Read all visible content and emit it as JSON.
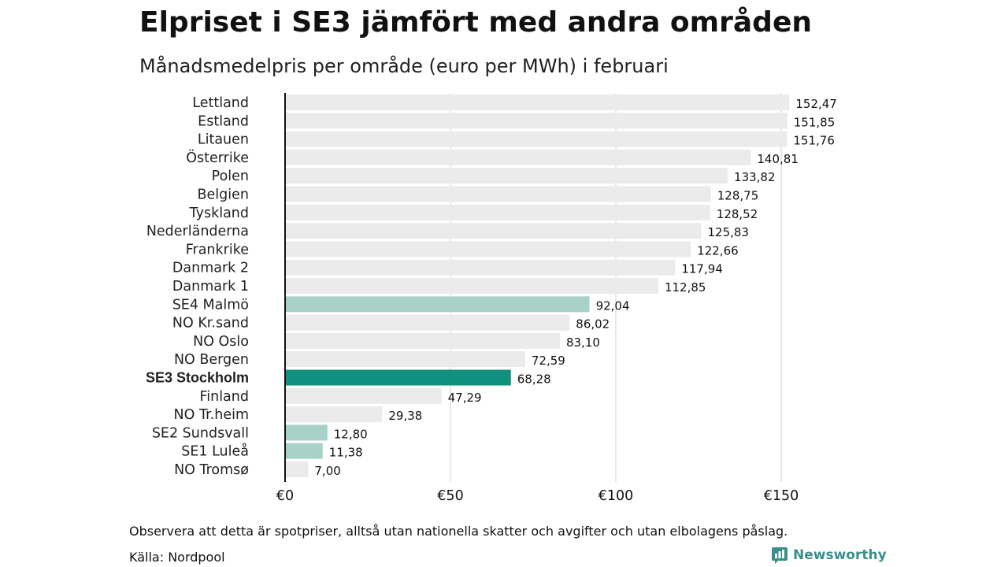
{
  "header": {
    "title": "Elpriset i SE3 jämfört med andra områden",
    "subtitle": "Månadsmedelpris per område (euro per MWh) i februari"
  },
  "footer": {
    "note": "Observera att detta är spotpriser, alltså utan nationella skatter och avgifter och utan elbolagens påslag.",
    "source": "Källa: Nordpool",
    "logo_text": "Newsworthy"
  },
  "colors": {
    "default_bar": "#ebebeb",
    "swedish_bar": "#a8d1c8",
    "highlight_bar": "#10917f",
    "axis": "#111111",
    "grid": "#cfcfcf"
  },
  "chart_data": {
    "type": "bar",
    "orientation": "horizontal",
    "categories": [
      "Lettland",
      "Estland",
      "Litauen",
      "Österrike",
      "Polen",
      "Belgien",
      "Tyskland",
      "Nederländerna",
      "Frankrike",
      "Danmark 2",
      "Danmark 1",
      "SE4 Malmö",
      "NO Kr.sand",
      "NO Oslo",
      "NO Bergen",
      "SE3 Stockholm",
      "Finland",
      "NO Tr.heim",
      "SE2 Sundsvall",
      "SE1 Luleå",
      "NO Tromsø"
    ],
    "values": [
      152.47,
      151.85,
      151.76,
      140.81,
      133.82,
      128.75,
      128.52,
      125.83,
      122.66,
      117.94,
      112.85,
      92.04,
      86.02,
      83.1,
      72.59,
      68.28,
      47.29,
      29.38,
      12.8,
      11.38,
      7.0
    ],
    "value_labels": [
      "152,47",
      "151,85",
      "151,76",
      "140,81",
      "133,82",
      "128,75",
      "128,52",
      "125,83",
      "122,66",
      "117,94",
      "112,85",
      "92,04",
      "86,02",
      "83,10",
      "72,59",
      "68,28",
      "47,29",
      "29,38",
      "12,80",
      "11,38",
      "7,00"
    ],
    "bar_group": [
      "default",
      "default",
      "default",
      "default",
      "default",
      "default",
      "default",
      "default",
      "default",
      "default",
      "default",
      "swedish",
      "default",
      "default",
      "default",
      "highlight",
      "default",
      "default",
      "swedish",
      "swedish",
      "default"
    ],
    "highlight_category": "SE3 Stockholm",
    "xlim": [
      0,
      160
    ],
    "xticks": [
      0,
      50,
      100,
      150
    ],
    "xtick_labels": [
      "€0",
      "€50",
      "€100",
      "€150"
    ],
    "xlabel": "",
    "ylabel": "",
    "grid": true
  }
}
